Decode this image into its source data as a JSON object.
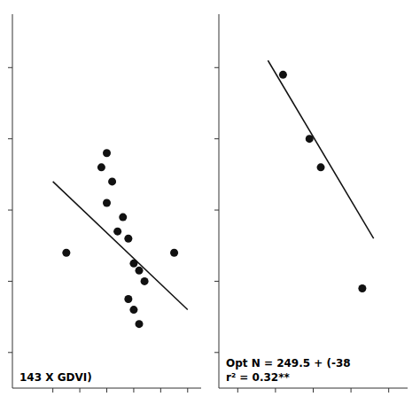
{
  "chart_data": [
    {
      "type": "scatter",
      "series": [
        {
          "type": "scatter",
          "color": "#111111",
          "x": [
            0.15,
            0.28,
            0.3,
            0.32,
            0.3,
            0.34,
            0.36,
            0.38,
            0.4,
            0.42,
            0.44,
            0.38,
            0.4,
            0.42,
            0.55
          ],
          "values": [
            168,
            192,
            196,
            188,
            182,
            174,
            178,
            172,
            165,
            163,
            160,
            155,
            152,
            148,
            168
          ]
        },
        {
          "type": "line",
          "color": "#111111",
          "x": [
            0.1,
            0.6
          ],
          "values": [
            188,
            152
          ]
        }
      ],
      "annotations": [
        "143 X GDVI)"
      ],
      "xlim": [
        -0.05,
        0.65
      ],
      "ylim": [
        130,
        235
      ],
      "xticks": [
        0.1,
        0.2,
        0.3,
        0.4,
        0.5,
        0.6
      ],
      "yticks": [
        140,
        160,
        180,
        200,
        220
      ],
      "tick_labels": false,
      "grid": false
    },
    {
      "type": "scatter",
      "series": [
        {
          "type": "scatter",
          "color": "#111111",
          "x": [
            0.72,
            0.79,
            0.82,
            0.93
          ],
          "values": [
            218,
            200,
            192,
            158
          ]
        },
        {
          "type": "line",
          "color": "#111111",
          "x": [
            0.68,
            0.96
          ],
          "values": [
            222,
            172
          ]
        }
      ],
      "annotations": [
        "Opt N = 249.5 + (-38",
        "r² = 0.32**"
      ],
      "xlim": [
        0.55,
        1.05
      ],
      "ylim": [
        130,
        235
      ],
      "xticks": [
        0.6,
        0.7,
        0.8,
        0.9,
        1.0
      ],
      "yticks": [
        140,
        160,
        180,
        200,
        220
      ],
      "tick_labels": false,
      "grid": false
    }
  ]
}
